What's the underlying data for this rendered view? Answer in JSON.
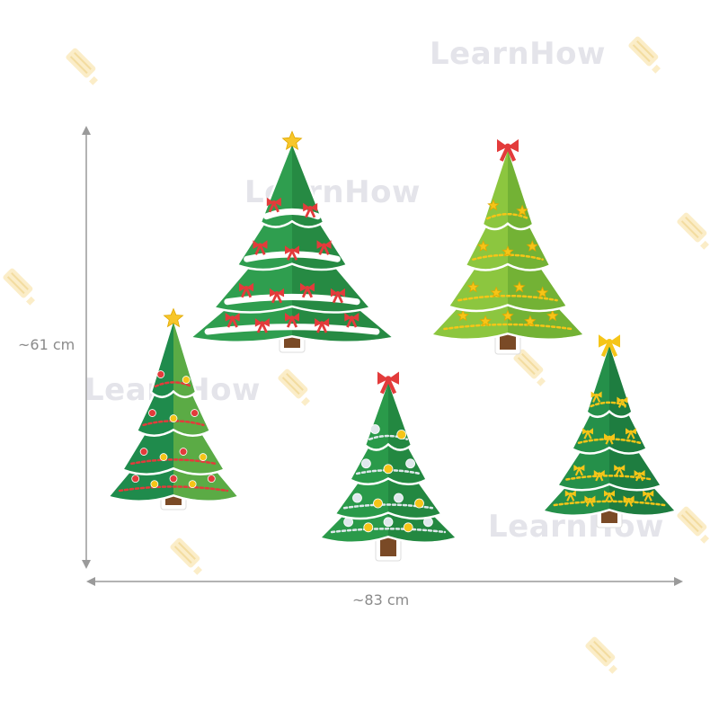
{
  "watermark": {
    "text": "LearnHow",
    "text_color": "#e4e4ea",
    "icon": "pencil-icon",
    "icon_color": "#fbedc8"
  },
  "dimensions": {
    "height_label": "~61 cm",
    "width_label": "~83 cm",
    "line_color": "#9a9a9a"
  },
  "trees": [
    {
      "name": "snowy-tree-with-red-bows",
      "topper": "star",
      "colors": {
        "body": "#2f9e4f",
        "dark": "#1f7a3a",
        "accent": "#ffffff",
        "ornament": "#e33b3b"
      }
    },
    {
      "name": "light-green-tree-with-stars",
      "topper": "bow",
      "colors": {
        "body": "#8cc63f",
        "dark": "#5fa32e",
        "accent": "#f5c518",
        "ornament": "#e2483d"
      }
    },
    {
      "name": "tree-with-garlands",
      "topper": "star",
      "colors": {
        "body": "#1f8b4c",
        "dark": "#8cc63f",
        "accent": "#e33b3b",
        "ornament": "#f5c518"
      }
    },
    {
      "name": "tree-with-silver-balls",
      "topper": "bow",
      "colors": {
        "body": "#2a9a4a",
        "dark": "#1d7a3a",
        "accent": "#dfe8ec",
        "ornament": "#f5c518"
      }
    },
    {
      "name": "tree-with-gold-bows",
      "topper": "bow",
      "colors": {
        "body": "#25904a",
        "dark": "#1a6e38",
        "accent": "#f5c518",
        "ornament": "#e33b3b"
      }
    }
  ]
}
